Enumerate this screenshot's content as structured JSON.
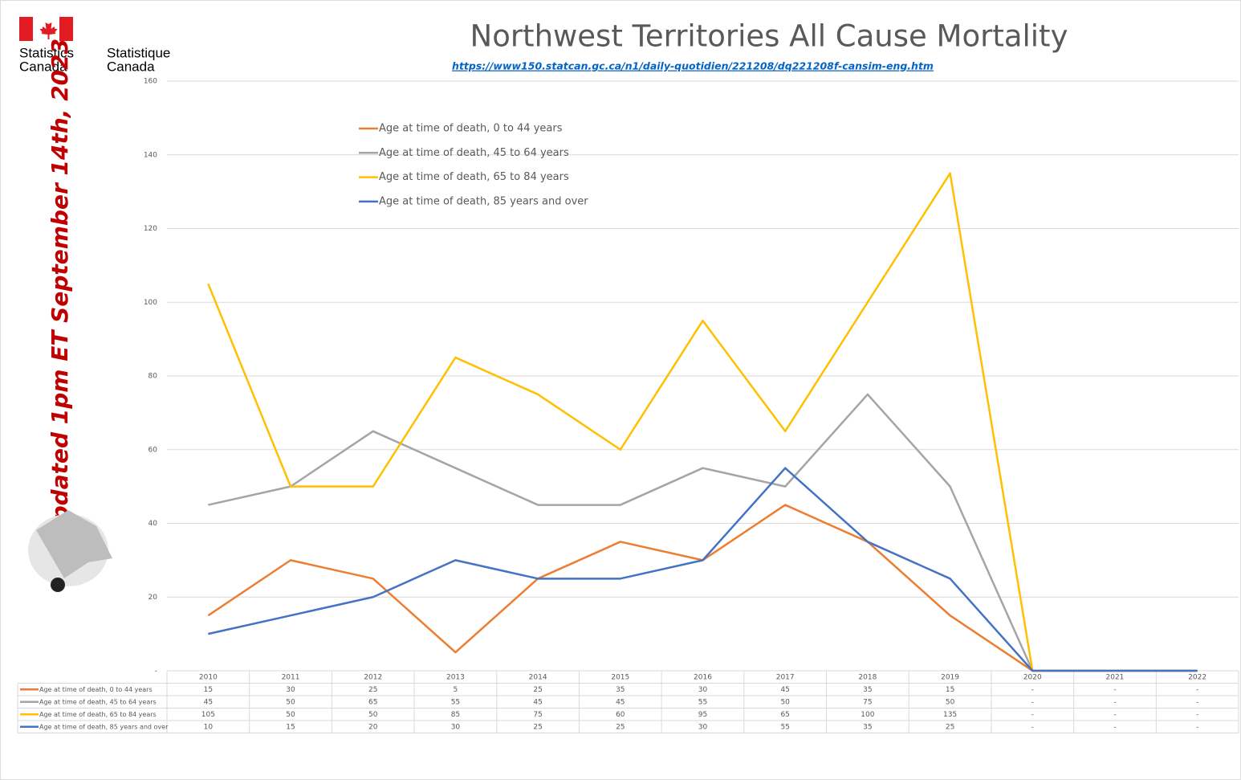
{
  "branding": {
    "en": [
      "Statistics",
      "Canada"
    ],
    "fr": [
      "Statistique",
      "Canada"
    ]
  },
  "chart_data": {
    "type": "line",
    "title": "Northwest Territories All Cause Mortality",
    "subtitle": "https://www150.statcan.gc.ca/n1/daily-quotidien/221208/dq221208f-cansim-eng.htm",
    "annotation": "Updated 1pm ET September 14th, 2023",
    "categories": [
      "2010",
      "2011",
      "2012",
      "2013",
      "2014",
      "2015",
      "2016",
      "2017",
      "2018",
      "2019",
      "2020",
      "2021",
      "2022"
    ],
    "series": [
      {
        "name": "Age at time of death, 0 to 44 years",
        "color": "#ed7d31",
        "values": [
          15,
          30,
          25,
          5,
          25,
          35,
          30,
          45,
          35,
          15,
          0,
          0,
          0
        ],
        "value_labels": [
          "15",
          "30",
          "25",
          "5",
          "25",
          "35",
          "30",
          "45",
          "35",
          "15",
          "-",
          "-",
          "-"
        ]
      },
      {
        "name": "Age at time of death, 45 to 64 years",
        "color": "#a5a5a5",
        "values": [
          45,
          50,
          65,
          55,
          45,
          45,
          55,
          50,
          75,
          50,
          0,
          0,
          0
        ],
        "value_labels": [
          "45",
          "50",
          "65",
          "55",
          "45",
          "45",
          "55",
          "50",
          "75",
          "50",
          "-",
          "-",
          "-"
        ]
      },
      {
        "name": "Age at time of death, 65 to 84 years",
        "color": "#ffc000",
        "values": [
          105,
          50,
          50,
          85,
          75,
          60,
          95,
          65,
          100,
          135,
          0,
          0,
          0
        ],
        "value_labels": [
          "105",
          "50",
          "50",
          "85",
          "75",
          "60",
          "95",
          "65",
          "100",
          "135",
          "-",
          "-",
          "-"
        ]
      },
      {
        "name": "Age at time of death, 85 years and over",
        "color": "#4472c4",
        "values": [
          10,
          15,
          20,
          30,
          25,
          25,
          30,
          55,
          35,
          25,
          0,
          0,
          0
        ],
        "value_labels": [
          "10",
          "15",
          "20",
          "30",
          "25",
          "25",
          "30",
          "55",
          "35",
          "25",
          "-",
          "-",
          "-"
        ]
      }
    ],
    "ylim": [
      0,
      160
    ],
    "yticks": [
      {
        "value": 0,
        "label": "-"
      },
      20,
      40,
      60,
      80,
      100,
      120,
      140,
      160
    ],
    "grid": true,
    "legend": "top-left"
  }
}
